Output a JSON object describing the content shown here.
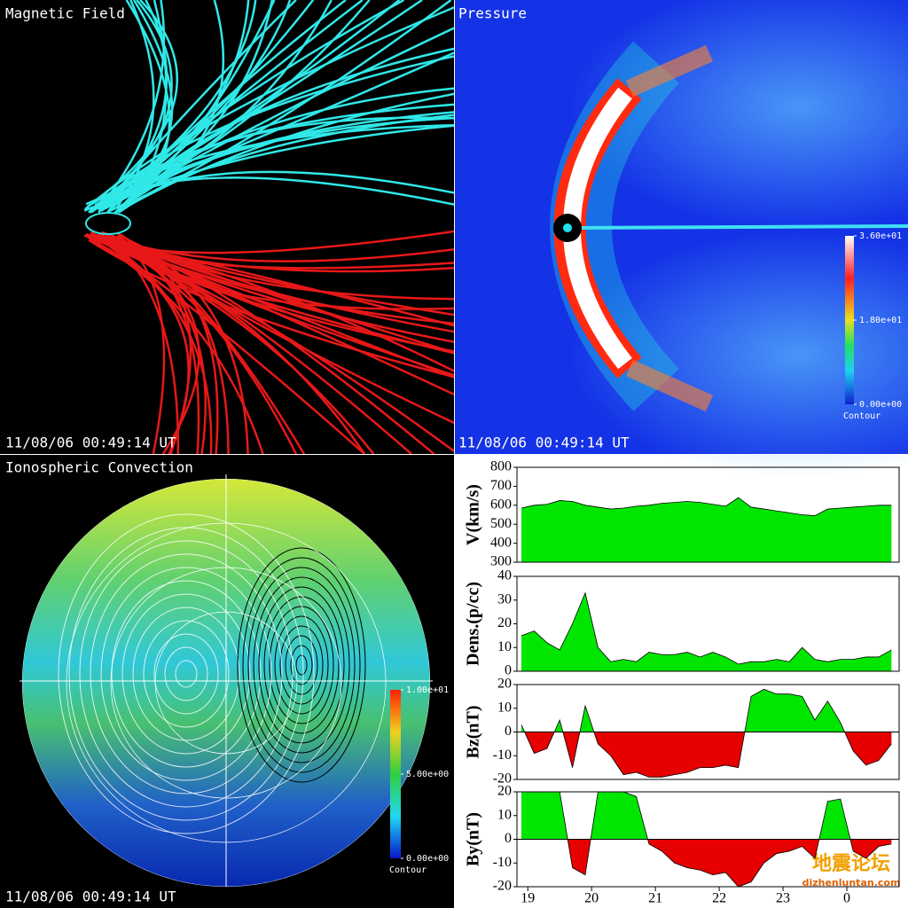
{
  "panels": {
    "magnetic_field": {
      "title": "Magnetic Field",
      "timestamp": "11/08/06 00:49:14 UT"
    },
    "pressure": {
      "title": "Pressure",
      "timestamp": "11/08/06 00:49:14 UT",
      "colorbar": {
        "lim": [
          0,
          36
        ],
        "ticks": [
          {
            "value": 36,
            "label": "3.60e+01"
          },
          {
            "value": 18,
            "label": "1.80e+01"
          },
          {
            "value": 0,
            "label": "0.00e+00"
          }
        ],
        "label": "Contour"
      }
    },
    "ionospheric_convection": {
      "title": "Ionospheric Convection",
      "timestamp": "11/08/06 00:49:14 UT",
      "colorbar": {
        "lim": [
          0,
          10
        ],
        "ticks": [
          {
            "value": 10,
            "label": "1.00e+01"
          },
          {
            "value": 5,
            "label": "5.00e+00"
          },
          {
            "value": 0,
            "label": "0.00e+00"
          }
        ],
        "label": "Contour"
      }
    }
  },
  "chart_data": [
    {
      "type": "area",
      "y_label": "V(km/s)",
      "color": "#00e600",
      "x": [
        18.9,
        19.1,
        19.3,
        19.5,
        19.7,
        19.9,
        20.1,
        20.3,
        20.5,
        20.7,
        20.9,
        21.1,
        21.3,
        21.5,
        21.7,
        21.9,
        22.1,
        22.3,
        22.5,
        22.7,
        22.9,
        23.1,
        23.3,
        23.5,
        23.7,
        23.9,
        24.1,
        24.3,
        24.5,
        24.7
      ],
      "values": [
        585,
        600,
        605,
        625,
        620,
        600,
        590,
        580,
        585,
        595,
        600,
        610,
        615,
        620,
        615,
        605,
        595,
        640,
        590,
        580,
        570,
        560,
        550,
        545,
        580,
        585,
        590,
        595,
        600,
        600
      ],
      "xlim": [
        18.83,
        24.82
      ],
      "ylim": [
        300,
        800
      ],
      "yticks": [
        300,
        400,
        500,
        600,
        700,
        800
      ]
    },
    {
      "type": "area",
      "y_label": "Dens.(p/cc)",
      "color": "#00e600",
      "x": [
        18.9,
        19.1,
        19.3,
        19.5,
        19.7,
        19.9,
        20.1,
        20.3,
        20.5,
        20.7,
        20.9,
        21.1,
        21.3,
        21.5,
        21.7,
        21.9,
        22.1,
        22.3,
        22.5,
        22.7,
        22.9,
        23.1,
        23.3,
        23.5,
        23.7,
        23.9,
        24.1,
        24.3,
        24.5,
        24.7
      ],
      "values": [
        15,
        17,
        12,
        9,
        20,
        33,
        10,
        4,
        5,
        4,
        8,
        7,
        7,
        8,
        6,
        8,
        6,
        3,
        4,
        4,
        5,
        4,
        10,
        5,
        4,
        5,
        5,
        6,
        6,
        9
      ],
      "xlim": [
        18.83,
        24.82
      ],
      "ylim": [
        0,
        40
      ],
      "yticks": [
        0,
        10,
        20,
        30,
        40
      ]
    },
    {
      "type": "area",
      "y_label": "Bz(nT)",
      "color": "#00e600",
      "negative_color": "#e60000",
      "x": [
        18.9,
        19.1,
        19.3,
        19.5,
        19.7,
        19.9,
        20.1,
        20.3,
        20.5,
        20.7,
        20.9,
        21.1,
        21.3,
        21.5,
        21.7,
        21.9,
        22.1,
        22.3,
        22.5,
        22.7,
        22.9,
        23.1,
        23.3,
        23.5,
        23.7,
        23.9,
        24.1,
        24.3,
        24.5,
        24.7
      ],
      "values": [
        3,
        -9,
        -7,
        5,
        -15,
        11,
        -5,
        -10,
        -18,
        -17,
        -19,
        -19,
        -18,
        -17,
        -15,
        -15,
        -14,
        -15,
        15,
        18,
        16,
        16,
        15,
        5,
        13,
        4,
        -8,
        -14,
        -12,
        -5
      ],
      "xlim": [
        18.83,
        24.82
      ],
      "ylim": [
        -20,
        20
      ],
      "yticks": [
        -20,
        -10,
        0,
        10,
        20
      ]
    },
    {
      "type": "area",
      "y_label": "By(nT)",
      "color": "#00e600",
      "negative_color": "#e60000",
      "x": [
        18.9,
        19.1,
        19.3,
        19.5,
        19.7,
        19.9,
        20.1,
        20.3,
        20.5,
        20.7,
        20.9,
        21.1,
        21.3,
        21.5,
        21.7,
        21.9,
        22.1,
        22.3,
        22.5,
        22.7,
        22.9,
        23.1,
        23.3,
        23.5,
        23.7,
        23.9,
        24.1,
        24.3,
        24.5,
        24.7
      ],
      "values": [
        20,
        20,
        20,
        20,
        -12,
        -15,
        20,
        20,
        20,
        18,
        -2,
        -5,
        -10,
        -12,
        -13,
        -15,
        -14,
        -20,
        -18,
        -10,
        -6,
        -5,
        -3,
        -8,
        16,
        17,
        -5,
        -8,
        -3,
        -2
      ],
      "xlim": [
        18.83,
        24.82
      ],
      "ylim": [
        -20,
        20
      ],
      "yticks": [
        -20,
        -10,
        0,
        10,
        20
      ],
      "xticks": [
        19,
        20,
        21,
        22,
        23,
        {
          "value": 24,
          "label": "0"
        }
      ]
    }
  ],
  "watermark": {
    "text": "地震论坛",
    "url": "dizhenluntan.com"
  }
}
